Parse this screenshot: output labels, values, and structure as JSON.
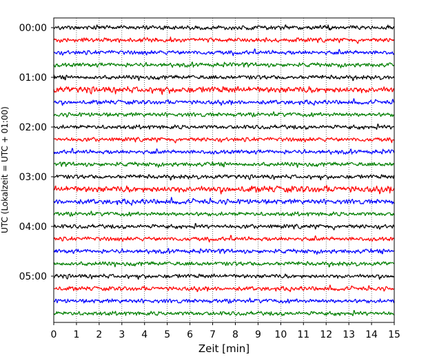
{
  "chart_data": {
    "type": "line",
    "title": "",
    "xlabel": "Zeit  [min]",
    "ylabel": "UTC (Lokalzeit = UTC + 01:00)",
    "xlim": [
      0,
      15
    ],
    "x_ticks": [
      "0",
      "1",
      "2",
      "3",
      "4",
      "5",
      "6",
      "7",
      "8",
      "9",
      "10",
      "11",
      "12",
      "13",
      "14",
      "15"
    ],
    "y_ticks": [
      "00:00",
      "01:00",
      "02:00",
      "03:00",
      "04:00",
      "05:00"
    ],
    "grid": "vertical-dotted",
    "legend": "none",
    "trace_interval_minutes": 15,
    "trace_count": 24,
    "trace_colors": [
      "#000000",
      "#ff0000",
      "#0000ff",
      "#007f00"
    ],
    "trace_amplitude_rows": [
      0.1,
      0.1,
      0.1,
      0.1,
      0.1,
      0.15,
      0.1,
      0.1,
      0.1,
      0.1,
      0.1,
      0.1,
      0.1,
      0.15,
      0.12,
      0.1,
      0.1,
      0.1,
      0.1,
      0.1,
      0.1,
      0.1,
      0.1,
      0.1
    ],
    "series": [
      {
        "start": "00:00",
        "color": "#000000"
      },
      {
        "start": "00:15",
        "color": "#ff0000"
      },
      {
        "start": "00:30",
        "color": "#0000ff"
      },
      {
        "start": "00:45",
        "color": "#007f00"
      },
      {
        "start": "01:00",
        "color": "#000000"
      },
      {
        "start": "01:15",
        "color": "#ff0000"
      },
      {
        "start": "01:30",
        "color": "#0000ff"
      },
      {
        "start": "01:45",
        "color": "#007f00"
      },
      {
        "start": "02:00",
        "color": "#000000"
      },
      {
        "start": "02:15",
        "color": "#ff0000"
      },
      {
        "start": "02:30",
        "color": "#0000ff"
      },
      {
        "start": "02:45",
        "color": "#007f00"
      },
      {
        "start": "03:00",
        "color": "#000000"
      },
      {
        "start": "03:15",
        "color": "#ff0000"
      },
      {
        "start": "03:30",
        "color": "#0000ff"
      },
      {
        "start": "03:45",
        "color": "#007f00"
      },
      {
        "start": "04:00",
        "color": "#000000"
      },
      {
        "start": "04:15",
        "color": "#ff0000"
      },
      {
        "start": "04:30",
        "color": "#0000ff"
      },
      {
        "start": "04:45",
        "color": "#007f00"
      },
      {
        "start": "05:00",
        "color": "#000000"
      },
      {
        "start": "05:15",
        "color": "#ff0000"
      },
      {
        "start": "05:30",
        "color": "#0000ff"
      },
      {
        "start": "05:45",
        "color": "#007f00"
      }
    ]
  }
}
